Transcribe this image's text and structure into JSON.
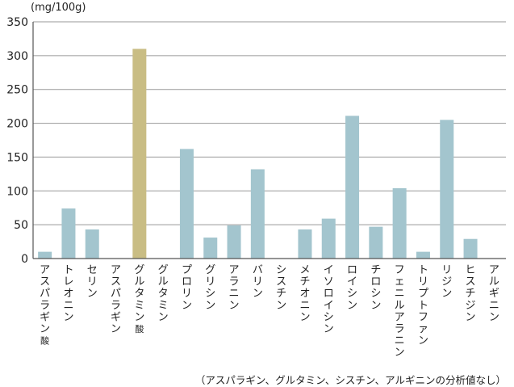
{
  "chart_data": {
    "type": "bar",
    "unit_label": "(mg/100g)",
    "footnote": "（アスパラギン、グルタミン、シスチン、アルギニンの分析値なし）",
    "categories": [
      {
        "main": "アスパラギン",
        "suffix": "酸"
      },
      {
        "main": "トレオニン",
        "suffix": ""
      },
      {
        "main": "セリン",
        "suffix": ""
      },
      {
        "main": "アスパラギン",
        "suffix": ""
      },
      {
        "main": "グルタミン",
        "suffix": "酸"
      },
      {
        "main": "グルタミン",
        "suffix": ""
      },
      {
        "main": "プロリン",
        "suffix": ""
      },
      {
        "main": "グリシン",
        "suffix": ""
      },
      {
        "main": "アラニン",
        "suffix": ""
      },
      {
        "main": "バリン",
        "suffix": ""
      },
      {
        "main": "シスチン",
        "suffix": ""
      },
      {
        "main": "メチオニン",
        "suffix": ""
      },
      {
        "main": "イソロイシン",
        "suffix": ""
      },
      {
        "main": "ロイシン",
        "suffix": ""
      },
      {
        "main": "チロシン",
        "suffix": ""
      },
      {
        "main": "フェニルアラニン",
        "suffix": ""
      },
      {
        "main": "トリプトファン",
        "suffix": ""
      },
      {
        "main": "リジン",
        "suffix": ""
      },
      {
        "main": "ヒスチジン",
        "suffix": ""
      },
      {
        "main": "アルギニン",
        "suffix": ""
      }
    ],
    "values": [
      10,
      74,
      43,
      null,
      310,
      null,
      162,
      31,
      49,
      132,
      null,
      43,
      59,
      211,
      47,
      104,
      10,
      205,
      29,
      null
    ],
    "highlight_index": 4,
    "ylim": [
      0,
      350
    ],
    "yticks": [
      0,
      50,
      100,
      150,
      200,
      250,
      300,
      350
    ],
    "grid": true,
    "colors": {
      "bar": "#a3c5ce",
      "highlight": "#c9bd84",
      "grid": "#999999",
      "axis": "#555555"
    }
  }
}
